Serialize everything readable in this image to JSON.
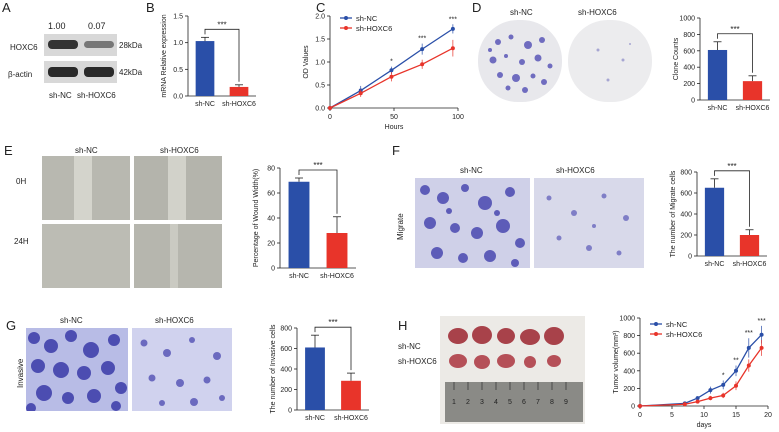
{
  "colors": {
    "blue": "#2a4fa8",
    "red": "#e8342a",
    "stain": "#5a56b8"
  },
  "panels": {
    "A": {
      "letter": "A",
      "values": [
        "1.00",
        "0.07"
      ],
      "rows": [
        "HOXC6",
        "β-actin"
      ],
      "kda": [
        "28kDa",
        "42kDa"
      ],
      "groups": [
        "sh-NC",
        "sh-HOXC6"
      ]
    },
    "B": {
      "letter": "B",
      "sig": "***"
    },
    "C": {
      "letter": "C",
      "sig": [
        "*",
        "***",
        "***"
      ]
    },
    "D": {
      "letter": "D",
      "groups": [
        "sh-NC",
        "sh-HOXC6"
      ],
      "sig": "***"
    },
    "E": {
      "letter": "E",
      "groups": [
        "sh-NC",
        "sh-HOXC6"
      ],
      "rows": [
        "0H",
        "24H"
      ],
      "sig": "***"
    },
    "F": {
      "letter": "F",
      "groups": [
        "sh-NC",
        "sh-HOXC6"
      ],
      "row": "Migrate",
      "sig": "***"
    },
    "G": {
      "letter": "G",
      "groups": [
        "sh-NC",
        "sh-HOXC6"
      ],
      "row": "Invasive",
      "sig": "***"
    },
    "H": {
      "letter": "H",
      "rows": [
        "sh-NC",
        "sh-HOXC6"
      ],
      "sig": [
        "*",
        "**",
        "***",
        "***"
      ],
      "ruler": [
        "1",
        "2",
        "3",
        "4",
        "5",
        "6",
        "7",
        "8",
        "9"
      ]
    }
  },
  "chart_data": [
    {
      "id": "B",
      "type": "bar",
      "categories": [
        "sh-NC",
        "sh-HOXC6"
      ],
      "values": [
        1.03,
        0.17
      ],
      "errors": [
        0.07,
        0.04
      ],
      "ylabel": "mRNA Relative expression",
      "ylim": [
        0,
        1.5
      ],
      "yticks": [
        "0.0",
        "0.5",
        "1.0",
        "1.5"
      ]
    },
    {
      "id": "C",
      "type": "line",
      "x": [
        0,
        24,
        48,
        72,
        96
      ],
      "xlabel": "Hours",
      "ylabel": "OD Values",
      "ylim": [
        0,
        2.0
      ],
      "yticks": [
        "0.0",
        "0.5",
        "1.0",
        "1.5",
        "2.0"
      ],
      "xticks": [
        "0",
        "50",
        "100"
      ],
      "series": [
        {
          "name": "sh-NC",
          "values": [
            0.0,
            0.38,
            0.82,
            1.28,
            1.72
          ],
          "errors": [
            0,
            0.1,
            0.08,
            0.12,
            0.1
          ]
        },
        {
          "name": "sh-HOXC6",
          "values": [
            0.0,
            0.32,
            0.68,
            0.95,
            1.3
          ],
          "errors": [
            0,
            0.08,
            0.1,
            0.1,
            0.18
          ]
        }
      ]
    },
    {
      "id": "D",
      "type": "bar",
      "categories": [
        "sh-NC",
        "sh-HOXC6"
      ],
      "values": [
        610,
        230
      ],
      "errors": [
        100,
        65
      ],
      "ylabel": "Clone Counts",
      "ylim": [
        0,
        1000
      ],
      "yticks": [
        "0",
        "200",
        "400",
        "600",
        "800",
        "1000"
      ]
    },
    {
      "id": "E",
      "type": "bar",
      "categories": [
        "sh-NC",
        "sh-HOXC6"
      ],
      "values": [
        69,
        28
      ],
      "errors": [
        3,
        13
      ],
      "ylabel": "Percentage of Wound Width(%)",
      "ylim": [
        0,
        80
      ],
      "yticks": [
        "0",
        "20",
        "40",
        "60",
        "80"
      ]
    },
    {
      "id": "F",
      "type": "bar",
      "categories": [
        "sh-NC",
        "sh-HOXC6"
      ],
      "values": [
        650,
        200
      ],
      "errors": [
        85,
        50
      ],
      "ylabel": "The number of Migrate cells",
      "ylim": [
        0,
        800
      ],
      "yticks": [
        "0",
        "200",
        "400",
        "600",
        "800"
      ]
    },
    {
      "id": "G",
      "type": "bar",
      "categories": [
        "sh-NC",
        "sh-HOXC6"
      ],
      "values": [
        610,
        285
      ],
      "errors": [
        120,
        75
      ],
      "ylabel": "The number of Invasive cells",
      "ylim": [
        0,
        800
      ],
      "yticks": [
        "0",
        "200",
        "400",
        "600",
        "800"
      ]
    },
    {
      "id": "H",
      "type": "line",
      "x": [
        0,
        7,
        9,
        11,
        13,
        15,
        17,
        19
      ],
      "xlabel": "days",
      "ylabel": "Tumor volume(mm³)",
      "ylim": [
        0,
        1000
      ],
      "yticks": [
        "0",
        "200",
        "400",
        "600",
        "800",
        "1000"
      ],
      "xticks": [
        "0",
        "5",
        "10",
        "15",
        "20"
      ],
      "series": [
        {
          "name": "sh-NC",
          "values": [
            0,
            30,
            90,
            180,
            240,
            400,
            660,
            810
          ],
          "errors": [
            0,
            10,
            20,
            40,
            50,
            60,
            110,
            100
          ]
        },
        {
          "name": "sh-HOXC6",
          "values": [
            0,
            20,
            50,
            90,
            120,
            230,
            460,
            660
          ],
          "errors": [
            0,
            8,
            15,
            25,
            30,
            50,
            70,
            90
          ]
        }
      ]
    }
  ]
}
